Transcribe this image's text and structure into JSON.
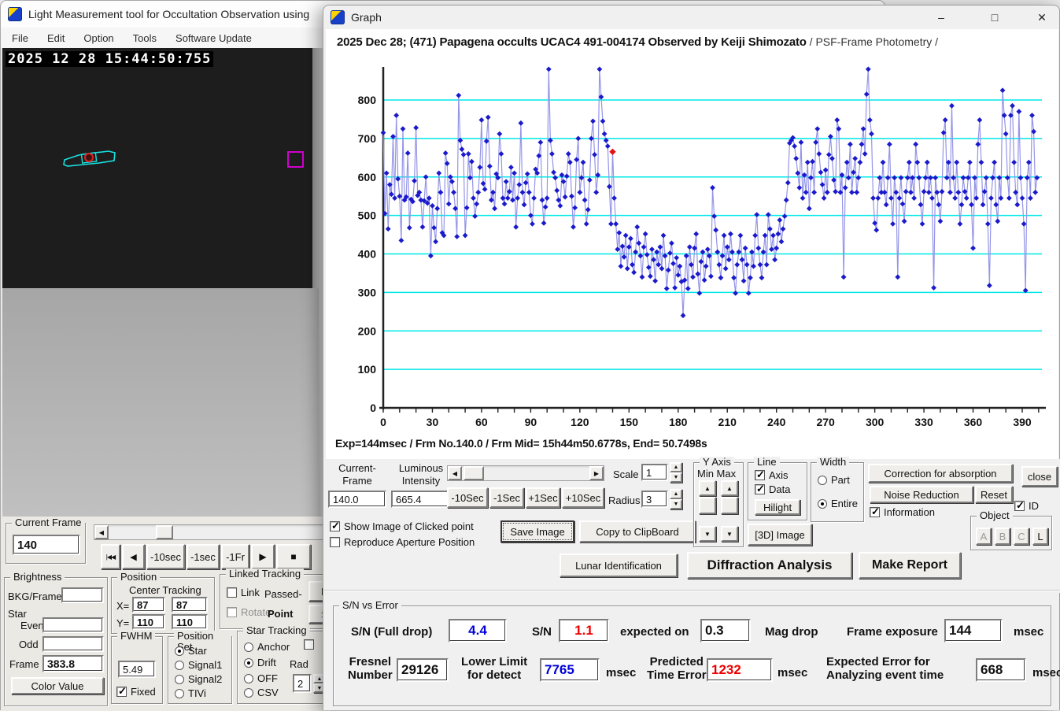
{
  "glyphs": {
    "left": "◀",
    "right": "▶",
    "up": "▲",
    "down": "▼",
    "to_start": "|◀◀",
    "back": "◀",
    "play": "▶",
    "stop": "■",
    "minimize": "–",
    "maximize": "□",
    "close": "✕"
  },
  "main_window": {
    "title": "Light Measurement tool for Occultation Observation using",
    "menu": [
      "File",
      "Edit",
      "Option",
      "Tools",
      "Software Update"
    ],
    "video": {
      "timestamp": "2025 12 28 15:44:50:755"
    },
    "controls": {
      "current_frame": {
        "legend": "Current Frame",
        "value": "140"
      },
      "transport": {
        "m10sec": "-10sec",
        "m1sec": "-1sec",
        "m1fr": "-1Fr"
      },
      "brightness": {
        "legend": "Brightness",
        "bkg_frame": "BKG/Frame",
        "star": "Star",
        "even": "Even",
        "odd": "Odd",
        "frame": "Frame",
        "frame_value": "383.8",
        "color_value": "Color Value"
      },
      "position": {
        "legend": "Position",
        "header": "Center Tracking",
        "x": "X=",
        "y": "Y=",
        "x_center": "87",
        "x_tracking": "87",
        "y_center": "110",
        "y_tracking": "110"
      },
      "linked_tracking": {
        "legend": "Linked Tracking",
        "link": "Link",
        "passed": "Passed-",
        "rotate": "Rotate",
        "point": "Point",
        "f_btn": "F",
        "s_btn": "S"
      },
      "fwhm": {
        "legend": "FWHM",
        "value": "5.49",
        "fixed": "Fixed"
      },
      "position_set": {
        "legend": "Position Set",
        "options": [
          "Star",
          "Signal1",
          "Signal2",
          "TIVi"
        ],
        "selected": "Star"
      },
      "star_tracking": {
        "legend": "Star Tracking",
        "options": [
          "Anchor",
          "Drift",
          "OFF",
          "CSV"
        ],
        "selected": "Drift",
        "rad": "Rad",
        "rad_value": "2"
      }
    }
  },
  "graph_window": {
    "title": "Graph",
    "controls": {
      "current_frame_label": "Current-\nFrame",
      "current_frame_l1": "Current-",
      "current_frame_l2": "Frame",
      "luminous_l1": "Luminous",
      "luminous_l2": "Intensity",
      "current_frame_value": "140.0",
      "luminous_value": "665.4",
      "sec_buttons": [
        "-10Sec",
        "-1Sec",
        "+1Sec",
        "+10Sec"
      ],
      "scale_label": "Scale",
      "scale_value": "1",
      "radius_label": "Radius",
      "radius_value": "3",
      "y_axis_legend": "Y Axis",
      "y_axis_minmax": "Min Max",
      "line_legend": "Line",
      "axis": "Axis",
      "data": "Data",
      "hilight": "Hilight",
      "width_legend": "Width",
      "part": "Part",
      "entire": "Entire",
      "correction": "Correction for absorption",
      "close": "close",
      "noise": "Noise Reduction",
      "reset": "Reset",
      "information": "Information",
      "id": "ID",
      "object_legend": "Object",
      "object_buttons": [
        "A",
        "B",
        "C",
        "L"
      ],
      "image3d": "[3D] Image",
      "show_image": "Show Image of Clicked point",
      "reproduce": "Reproduce Aperture Position",
      "save_image": "Save Image",
      "copy_clipboard": "Copy to ClipBoard"
    },
    "action_buttons": {
      "lunar": "Lunar Identification",
      "diffraction": "Diffraction Analysis",
      "report": "Make Report"
    },
    "sn_panel": {
      "legend": "S/N vs Error",
      "sn_full_label": "S/N (Full drop)",
      "sn_full_value": "4.4",
      "sn_label": "S/N",
      "sn_value": "1.1",
      "expected_label": "expected on",
      "expected_value": "0.3",
      "magdrop_label": "Mag drop",
      "frame_exposure_label": "Frame exposure",
      "frame_exposure_value": "144",
      "msec": "msec",
      "fresnel_l1": "Fresnel",
      "fresnel_l2": "Number",
      "fresnel_value": "29126",
      "lower_l1": "Lower Limit",
      "lower_l2": "for detect",
      "lower_value": "7765",
      "predicted_l1": "Predicted",
      "predicted_l2": "Time Error",
      "predicted_value": "1232",
      "experr_l1": "Expected Error for",
      "experr_l2": "Analyzing event time",
      "experr_value": "668"
    }
  },
  "chart_data": {
    "type": "line",
    "title_main": "2025 Dec 28; (471) Papagena occults UCAC4 491-004174 Observed by Keiji Shimozato",
    "title_suffix": " / PSF-Frame Photometry /",
    "footer": "Exp=144msec / Frm No.140.0 / Frm Mid= 15h44m50.6778s,  End= 50.7498s",
    "xlabel": "",
    "ylabel": "",
    "x_start": 0,
    "x_max": 402,
    "x_major_step": 30,
    "x_minor_step": 10,
    "ylim": [
      0,
      900
    ],
    "y_tick_step": 100,
    "y_tick_max": 800,
    "grid": true,
    "legend_position": "none",
    "highlight": {
      "index": 140,
      "value": 665.4
    },
    "colors": {
      "grid": "#00e8e8",
      "line": "#9595e8",
      "marker": "#1a1acc",
      "highlight": "#e81010",
      "axis": "#222222"
    },
    "values": [
      715,
      505,
      610,
      465,
      580,
      555,
      705,
      545,
      760,
      595,
      550,
      435,
      725,
      540,
      548,
      662,
      468,
      542,
      536,
      590,
      728,
      552,
      560,
      540,
      470,
      538,
      600,
      532,
      545,
      395,
      525,
      468,
      432,
      518,
      610,
      560,
      455,
      448,
      662,
      635,
      530,
      600,
      588,
      560,
      518,
      445,
      812,
      695,
      672,
      658,
      448,
      520,
      660,
      598,
      640,
      545,
      498,
      530,
      560,
      625,
      748,
      583,
      568,
      693,
      755,
      628,
      540,
      560,
      518,
      608,
      598,
      712,
      660,
      545,
      530,
      588,
      545,
      562,
      625,
      540,
      610,
      470,
      545,
      580,
      740,
      560,
      528,
      585,
      608,
      560,
      500,
      478,
      545,
      620,
      610,
      655,
      690,
      540,
      480,
      522,
      545,
      880,
      695,
      660,
      612,
      598,
      565,
      540,
      525,
      605,
      588,
      548,
      602,
      660,
      638,
      550,
      470,
      520,
      645,
      700,
      560,
      598,
      638,
      540,
      478,
      515,
      592,
      700,
      745,
      658,
      560,
      605,
      880,
      808,
      745,
      712,
      695,
      680,
      575,
      478,
      665.4,
      545,
      478,
      412,
      455,
      368,
      420,
      392,
      448,
      362,
      418,
      440,
      372,
      352,
      405,
      470,
      428,
      395,
      340,
      418,
      452,
      398,
      365,
      342,
      412,
      385,
      330,
      405,
      372,
      418,
      362,
      448,
      395,
      310,
      358,
      402,
      428,
      375,
      312,
      390,
      345,
      368,
      328,
      240,
      332,
      395,
      310,
      418,
      372,
      340,
      415,
      452,
      348,
      298,
      380,
      405,
      332,
      368,
      412,
      395,
      342,
      572,
      498,
      462,
      405,
      372,
      338,
      395,
      448,
      362,
      418,
      385,
      452,
      405,
      338,
      298,
      372,
      405,
      448,
      385,
      330,
      415,
      372,
      298,
      338,
      405,
      368,
      448,
      502,
      415,
      372,
      338,
      405,
      448,
      372,
      502,
      465,
      412,
      448,
      385,
      415,
      452,
      488,
      432,
      465,
      498,
      540,
      585,
      688,
      695,
      702,
      680,
      648,
      610,
      572,
      690,
      545,
      605,
      560,
      638,
      518,
      598,
      640,
      560,
      690,
      725,
      660,
      612,
      580,
      545,
      618,
      560,
      658,
      705,
      648,
      592,
      562,
      748,
      725,
      560,
      605,
      340,
      572,
      638,
      598,
      685,
      560,
      612,
      648,
      560,
      598,
      638,
      685,
      725,
      660,
      815,
      880,
      748,
      712,
      545,
      480,
      462,
      545,
      598,
      560,
      638,
      560,
      528,
      598,
      685,
      545,
      478,
      598,
      560,
      340,
      545,
      598,
      530,
      485,
      562,
      598,
      638,
      560,
      598,
      545,
      685,
      638,
      598,
      528,
      478,
      562,
      598,
      638,
      560,
      598,
      545,
      312,
      598,
      560,
      528,
      485,
      562,
      715,
      748,
      598,
      638,
      560,
      785,
      598,
      545,
      638,
      560,
      478,
      528,
      598,
      562,
      545,
      598,
      638,
      528,
      415,
      598,
      545,
      685,
      748,
      638,
      528,
      562,
      598,
      478,
      318,
      545,
      598,
      638,
      528,
      485,
      598,
      545,
      825,
      760,
      712,
      598,
      545,
      760,
      785,
      638,
      560,
      528,
      770,
      598,
      545,
      478,
      305,
      598,
      638,
      545,
      760,
      718,
      560,
      598
    ]
  }
}
